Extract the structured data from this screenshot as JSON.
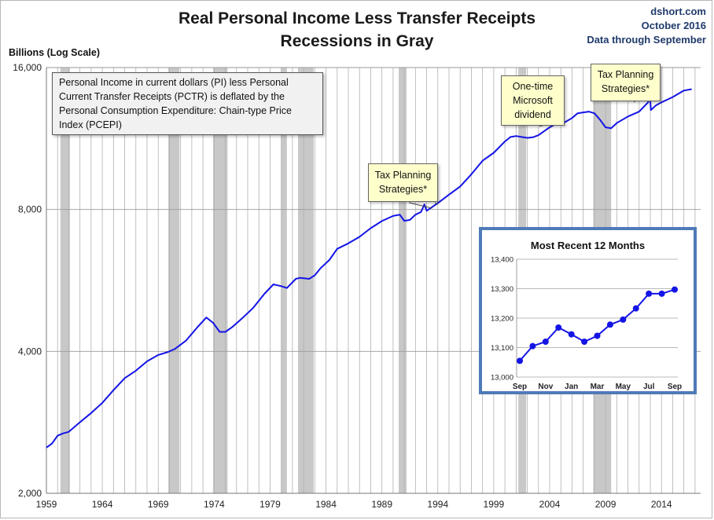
{
  "title_line1": "Real Personal Income Less Transfer Receipts",
  "title_line2": "Recessions in Gray",
  "source": {
    "site": "dshort.com",
    "date": "October 2016",
    "through": "Data through September"
  },
  "y_axis_label": "Billions (Log Scale)",
  "description": "Personal Income in current dollars  (PI) less Personal Current Transfer Receipts (PCTR) is deflated by the Personal Consumption Expenditure: Chain-type Price Index (PCEPI)",
  "annotations": {
    "tax_planning_1": "Tax Planning Strategies*",
    "microsoft": "One-time Microsoft dividend",
    "tax_planning_2": "Tax Planning Strategies*"
  },
  "colors": {
    "series": "#1414e6",
    "recession": "#c8c8c8",
    "grid": "#b0b0b0",
    "inset_border": "#4f7ab8",
    "callout_bg": "#ffffcc"
  },
  "chart_data": [
    {
      "type": "line",
      "title": "Real Personal Income Less Transfer Receipts",
      "ylabel": "Billions (Log Scale)",
      "y_scale": "log",
      "ylim": [
        2000,
        16000
      ],
      "y_ticks": [
        2000,
        4000,
        8000,
        16000
      ],
      "y_tick_labels": [
        "2,000",
        "4,000",
        "8,000",
        "16,000"
      ],
      "xlim": [
        1959.0,
        2017.5
      ],
      "x_ticks": [
        1959,
        1964,
        1969,
        1974,
        1979,
        1984,
        1989,
        1994,
        1999,
        2004,
        2009,
        2014
      ],
      "x_tick_labels": [
        "1959",
        "1964",
        "1969",
        "1974",
        "1979",
        "1984",
        "1989",
        "1994",
        "1999",
        "2004",
        "2009",
        "2014"
      ],
      "recessions": [
        [
          1960.25,
          1961.1
        ],
        [
          1969.9,
          1970.9
        ],
        [
          1973.9,
          1975.2
        ],
        [
          1980.0,
          1980.5
        ],
        [
          1981.5,
          1982.9
        ],
        [
          1990.5,
          1991.2
        ],
        [
          2001.2,
          2001.9
        ],
        [
          2007.9,
          2009.5
        ]
      ],
      "series": [
        {
          "x": [
            1959.0,
            1959.5,
            1960.0,
            1960.5,
            1961.0,
            1962.0,
            1963.0,
            1964.0,
            1965.0,
            1966.0,
            1967.0,
            1968.0,
            1969.0,
            1969.9,
            1970.5,
            1971.5,
            1972.5,
            1973.3,
            1973.9,
            1974.5,
            1975.0,
            1975.6,
            1976.5,
            1977.5,
            1978.5,
            1979.3,
            1980.0,
            1980.5,
            1981.3,
            1981.7,
            1982.5,
            1983.0,
            1983.5,
            1984.3,
            1985.0,
            1986.0,
            1987.0,
            1988.0,
            1989.0,
            1990.0,
            1990.6,
            1991.0,
            1991.5,
            1992.0,
            1992.5,
            1992.8,
            1993.0,
            1993.5,
            1994.0,
            1995.0,
            1996.0,
            1997.0,
            1998.0,
            1999.0,
            2000.0,
            2000.5,
            2001.0,
            2001.5,
            2002.0,
            2002.5,
            2003.0,
            2004.0,
            2004.7,
            2004.95,
            2005.05,
            2005.5,
            2006.0,
            2006.5,
            2007.0,
            2007.5,
            2008.0,
            2008.5,
            2009.0,
            2009.5,
            2010.0,
            2011.0,
            2012.0,
            2012.8,
            2012.95,
            2013.05,
            2013.5,
            2014.0,
            2015.0,
            2016.0,
            2016.7
          ],
          "y": [
            2500,
            2550,
            2650,
            2680,
            2700,
            2830,
            2960,
            3110,
            3310,
            3510,
            3640,
            3810,
            3930,
            3990,
            4050,
            4220,
            4500,
            4720,
            4600,
            4400,
            4400,
            4500,
            4700,
            4950,
            5300,
            5550,
            5500,
            5450,
            5700,
            5730,
            5700,
            5800,
            6000,
            6250,
            6600,
            6780,
            7000,
            7300,
            7560,
            7750,
            7800,
            7570,
            7600,
            7800,
            7900,
            8200,
            7950,
            8100,
            8250,
            8600,
            8950,
            9500,
            10150,
            10550,
            11150,
            11400,
            11450,
            11400,
            11350,
            11380,
            11500,
            11950,
            12200,
            12400,
            12150,
            12300,
            12500,
            12800,
            12850,
            12900,
            12800,
            12400,
            11950,
            11900,
            12200,
            12600,
            12900,
            13500,
            14200,
            13000,
            13300,
            13500,
            13850,
            14300,
            14400
          ]
        }
      ]
    },
    {
      "type": "line",
      "title": "Most Recent 12 Months",
      "categories": [
        "Sep",
        "Oct",
        "Nov",
        "Dec",
        "Jan",
        "Feb",
        "Mar",
        "Apr",
        "May",
        "Jun",
        "Jul",
        "Aug",
        "Sep"
      ],
      "x_tick_labels": [
        "Sep",
        "Nov",
        "Jan",
        "Mar",
        "May",
        "Jul",
        "Sep"
      ],
      "ylim": [
        13000,
        13400
      ],
      "y_ticks": [
        13000,
        13100,
        13200,
        13300,
        13400
      ],
      "y_tick_labels": [
        "13,000",
        "13,100",
        "13,200",
        "13,300",
        "13,400"
      ],
      "series": [
        {
          "values": [
            13055,
            13105,
            13120,
            13168,
            13145,
            13120,
            13140,
            13178,
            13195,
            13233,
            13283,
            13283,
            13297
          ]
        }
      ]
    }
  ]
}
